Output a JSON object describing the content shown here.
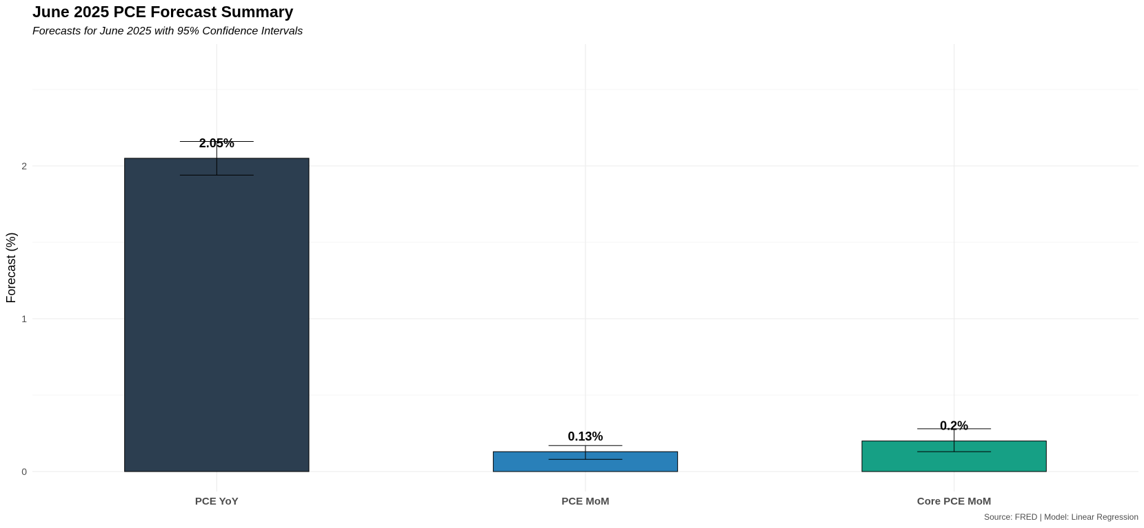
{
  "chart_data": {
    "type": "bar",
    "title": "June 2025 PCE Forecast Summary",
    "subtitle": "Forecasts for June 2025 with 95% Confidence Intervals",
    "caption": "Source: FRED | Model: Linear Regression",
    "xlabel": "",
    "ylabel": "Forecast (%)",
    "categories": [
      "PCE YoY",
      "PCE MoM",
      "Core PCE MoM"
    ],
    "values": [
      2.05,
      0.13,
      0.2
    ],
    "ci_lower": [
      1.94,
      0.08,
      0.13
    ],
    "ci_upper": [
      2.16,
      0.17,
      0.28
    ],
    "data_labels": [
      "2.05%",
      "0.13%",
      "0.2%"
    ],
    "colors": [
      "#2c3e50",
      "#2980b9",
      "#16a085"
    ],
    "ylim": [
      -0.04,
      2.8
    ],
    "yticks": [
      0,
      1,
      2
    ],
    "grid": true,
    "legend": "none"
  }
}
